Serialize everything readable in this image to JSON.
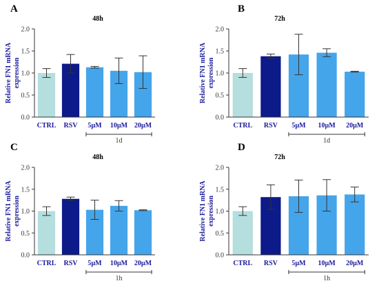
{
  "colors": {
    "ctrl": "#b5dede",
    "rsv": "#0c1a8a",
    "dose": "#45a5ea",
    "text": "#1a1a9a"
  },
  "chart_data": [
    {
      "type": "bar",
      "panel_label": "A",
      "title": "48h",
      "ylabel": [
        "Relative FN1 mRNA",
        "expression"
      ],
      "categories": [
        "CTRL",
        "RSV",
        "5µM",
        "10µM",
        "20µM"
      ],
      "values": [
        1.0,
        1.21,
        1.13,
        1.05,
        1.02
      ],
      "errors": [
        0.1,
        0.21,
        0.02,
        0.29,
        0.37
      ],
      "bar_colors": [
        "ctrl",
        "rsv",
        "dose",
        "dose",
        "dose"
      ],
      "ylim": [
        0,
        2.0
      ],
      "yticks": [
        "0.0",
        "0.5",
        "1.0",
        "1.5",
        "2.0"
      ],
      "bracket": {
        "label": "1d",
        "from": 2,
        "to": 4
      }
    },
    {
      "type": "bar",
      "panel_label": "B",
      "title": "72h",
      "ylabel": [
        "Relative FN1 mRNA",
        "expression"
      ],
      "categories": [
        "CTRL",
        "RSV",
        "5µM",
        "10µM",
        "20µM"
      ],
      "values": [
        1.0,
        1.38,
        1.42,
        1.46,
        1.03
      ],
      "errors": [
        0.1,
        0.05,
        0.46,
        0.09,
        0.01
      ],
      "bar_colors": [
        "ctrl",
        "rsv",
        "dose",
        "dose",
        "dose"
      ],
      "ylim": [
        0,
        2.0
      ],
      "yticks": [
        "0.0",
        "0.5",
        "1.0",
        "1.5",
        "2.0"
      ],
      "bracket": {
        "label": "1d",
        "from": 2,
        "to": 4
      }
    },
    {
      "type": "bar",
      "panel_label": "C",
      "title": "48h",
      "ylabel": [
        "Relative FN1 mRNA",
        "expression"
      ],
      "categories": [
        "CTRL",
        "RSV",
        "5µM",
        "10µM",
        "20µM"
      ],
      "values": [
        1.0,
        1.28,
        1.03,
        1.12,
        1.02
      ],
      "errors": [
        0.1,
        0.04,
        0.22,
        0.12,
        0.01
      ],
      "bar_colors": [
        "ctrl",
        "rsv",
        "dose",
        "dose",
        "dose"
      ],
      "ylim": [
        0,
        2.0
      ],
      "yticks": [
        "0.0",
        "0.5",
        "1.0",
        "1.5",
        "2.0"
      ],
      "bracket": {
        "label": "1h",
        "from": 2,
        "to": 4
      }
    },
    {
      "type": "bar",
      "panel_label": "D",
      "title": "72h",
      "ylabel": [
        "Relative FN1 mRNA",
        "expression"
      ],
      "categories": [
        "CTRL",
        "RSV",
        "5µM",
        "10µM",
        "20µM"
      ],
      "values": [
        1.0,
        1.32,
        1.34,
        1.36,
        1.38
      ],
      "errors": [
        0.1,
        0.28,
        0.37,
        0.36,
        0.17
      ],
      "bar_colors": [
        "ctrl",
        "rsv",
        "dose",
        "dose",
        "dose"
      ],
      "ylim": [
        0,
        2.0
      ],
      "yticks": [
        "0.0",
        "0.5",
        "1.0",
        "1.5",
        "2.0"
      ],
      "bracket": {
        "label": "1h",
        "from": 2,
        "to": 4
      }
    }
  ]
}
